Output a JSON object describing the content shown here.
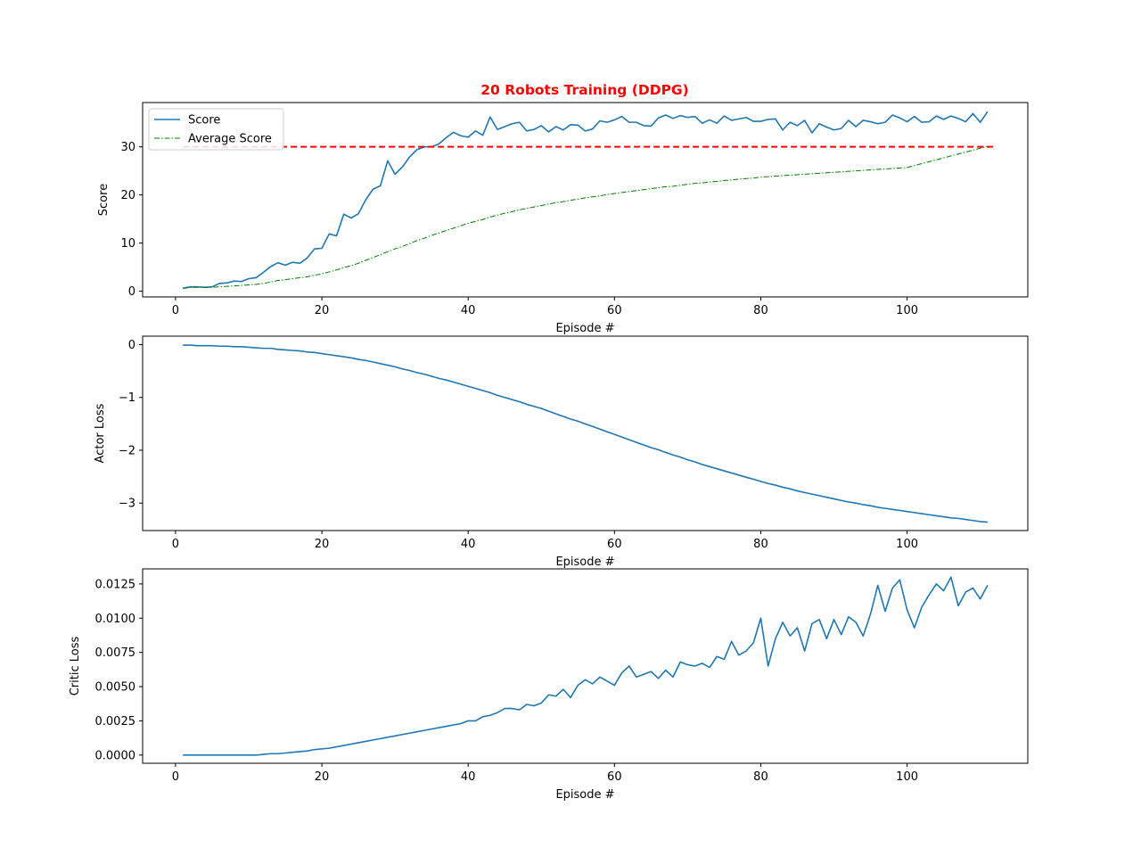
{
  "title": "20 Robots Training (DDPG)",
  "colors": {
    "score": "#1f77b4",
    "average": "#008000",
    "target": "#ff0000",
    "title": "#ff0000"
  },
  "chart_data": [
    {
      "type": "line",
      "xlabel": "Episode #",
      "ylabel": "Score",
      "xlim": [
        -4.5,
        116.5
      ],
      "ylim": [
        -1.2,
        39.2
      ],
      "xticks": [
        "0",
        "20",
        "40",
        "60",
        "80",
        "100"
      ],
      "yticks": [
        "0",
        "10",
        "20",
        "30"
      ],
      "legend": {
        "position": "top-left",
        "entries": [
          "Score",
          "Average Score"
        ]
      },
      "target_line": {
        "y": 30,
        "x": [
          1,
          112
        ],
        "style": "dashed"
      },
      "x_start": 1,
      "series": [
        {
          "name": "Score",
          "style": "solid",
          "values": [
            0.6,
            0.9,
            0.9,
            0.8,
            0.9,
            1.6,
            1.7,
            2.1,
            2.0,
            2.6,
            2.8,
            3.9,
            5.1,
            5.9,
            5.4,
            6.0,
            5.8,
            6.9,
            8.8,
            8.9,
            11.9,
            11.5,
            16.0,
            15.2,
            16.1,
            19.0,
            21.2,
            21.9,
            27.1,
            24.3,
            25.8,
            27.9,
            29.4,
            30.0,
            30.0,
            30.6,
            31.9,
            33.0,
            32.3,
            32.0,
            33.3,
            32.4,
            36.2,
            33.6,
            34.2,
            34.8,
            35.1,
            33.3,
            33.6,
            34.4,
            33.1,
            34.2,
            33.5,
            34.6,
            34.5,
            33.3,
            33.7,
            35.4,
            35.1,
            35.6,
            36.3,
            35.1,
            35.1,
            34.4,
            34.3,
            36.0,
            36.6,
            35.9,
            36.5,
            36.1,
            36.3,
            34.9,
            35.6,
            34.9,
            36.4,
            35.5,
            35.8,
            36.1,
            35.3,
            35.3,
            35.7,
            35.8,
            33.5,
            35.1,
            34.4,
            35.5,
            32.9,
            34.8,
            34.1,
            33.5,
            33.8,
            35.5,
            34.2,
            35.5,
            35.2,
            34.8,
            35.1,
            36.6,
            36.0,
            35.2,
            36.3,
            35.1,
            35.2,
            36.4,
            35.7,
            36.4,
            35.9,
            35.2,
            36.9,
            35.1,
            37.3
          ]
        },
        {
          "name": "Average Score",
          "style": "dashdot",
          "values": [
            0.6,
            0.75,
            0.8,
            0.8,
            0.8,
            0.9,
            1.0,
            1.1,
            1.2,
            1.3,
            1.4,
            1.6,
            1.9,
            2.2,
            2.4,
            2.6,
            2.8,
            3.0,
            3.3,
            3.6,
            4.0,
            4.4,
            4.9,
            5.3,
            5.8,
            6.4,
            7.0,
            7.6,
            8.2,
            8.8,
            9.3,
            9.9,
            10.5,
            11.0,
            11.6,
            12.1,
            12.6,
            13.1,
            13.6,
            14.1,
            14.5,
            14.9,
            15.4,
            15.8,
            16.2,
            16.5,
            16.9,
            17.2,
            17.5,
            17.8,
            18.1,
            18.4,
            18.6,
            18.9,
            19.1,
            19.4,
            19.6,
            19.8,
            20.1,
            20.3,
            20.5,
            20.7,
            20.9,
            21.1,
            21.3,
            21.5,
            21.7,
            21.8,
            22.0,
            22.2,
            22.4,
            22.5,
            22.7,
            22.8,
            23.0,
            23.1,
            23.3,
            23.4,
            23.5,
            23.7,
            23.8,
            23.9,
            24.0,
            24.1,
            24.2,
            24.3,
            24.4,
            24.5,
            24.6,
            24.7,
            24.8,
            24.9,
            25.0,
            25.1,
            25.2,
            25.3,
            25.4,
            25.5,
            25.6,
            25.7,
            26.1,
            26.5,
            26.9,
            27.3,
            27.7,
            28.1,
            28.5,
            28.9,
            29.3,
            29.7,
            30.1
          ]
        }
      ]
    },
    {
      "type": "line",
      "xlabel": "Episode #",
      "ylabel": "Actor Loss",
      "xlim": [
        -4.5,
        116.5
      ],
      "ylim": [
        -3.52,
        0.16
      ],
      "xticks": [
        "0",
        "20",
        "40",
        "60",
        "80",
        "100"
      ],
      "yticks": [
        "0",
        "−1",
        "−2",
        "−3"
      ],
      "x_start": 1,
      "series": [
        {
          "style": "solid",
          "values": [
            -0.01,
            -0.01,
            -0.02,
            -0.02,
            -0.02,
            -0.03,
            -0.03,
            -0.04,
            -0.04,
            -0.05,
            -0.06,
            -0.07,
            -0.07,
            -0.09,
            -0.1,
            -0.11,
            -0.12,
            -0.14,
            -0.15,
            -0.17,
            -0.19,
            -0.21,
            -0.23,
            -0.25,
            -0.28,
            -0.3,
            -0.33,
            -0.36,
            -0.39,
            -0.42,
            -0.46,
            -0.49,
            -0.53,
            -0.56,
            -0.6,
            -0.64,
            -0.67,
            -0.71,
            -0.75,
            -0.79,
            -0.83,
            -0.87,
            -0.91,
            -0.96,
            -1.0,
            -1.04,
            -1.08,
            -1.13,
            -1.17,
            -1.21,
            -1.26,
            -1.31,
            -1.36,
            -1.41,
            -1.45,
            -1.5,
            -1.55,
            -1.6,
            -1.65,
            -1.7,
            -1.75,
            -1.8,
            -1.85,
            -1.9,
            -1.95,
            -1.99,
            -2.04,
            -2.09,
            -2.13,
            -2.18,
            -2.22,
            -2.27,
            -2.31,
            -2.35,
            -2.39,
            -2.43,
            -2.47,
            -2.51,
            -2.55,
            -2.59,
            -2.63,
            -2.66,
            -2.7,
            -2.73,
            -2.77,
            -2.8,
            -2.83,
            -2.86,
            -2.89,
            -2.92,
            -2.95,
            -2.98,
            -3.0,
            -3.03,
            -3.05,
            -3.08,
            -3.1,
            -3.12,
            -3.14,
            -3.16,
            -3.18,
            -3.2,
            -3.22,
            -3.24,
            -3.26,
            -3.28,
            -3.29,
            -3.31,
            -3.33,
            -3.35,
            -3.36
          ]
        }
      ]
    },
    {
      "type": "line",
      "xlabel": "Episode #",
      "ylabel": "Critic Loss",
      "xlim": [
        -4.5,
        116.5
      ],
      "ylim": [
        -0.0006,
        0.0136
      ],
      "xticks": [
        "0",
        "20",
        "40",
        "60",
        "80",
        "100"
      ],
      "yticks": [
        "0.0000",
        "0.0025",
        "0.0050",
        "0.0075",
        "0.0100",
        "0.0125"
      ],
      "x_start": 1,
      "series": [
        {
          "style": "solid",
          "values": [
            0.0,
            0.0,
            0.0,
            0.0,
            0.0,
            0.0,
            0.0,
            0.0,
            0.0,
            0.0,
            0.0,
            5e-05,
            0.0001,
            0.0001,
            0.00015,
            0.0002,
            0.00025,
            0.0003,
            0.0004,
            0.00045,
            0.0005,
            0.0006,
            0.0007,
            0.0008,
            0.0009,
            0.001,
            0.0011,
            0.0012,
            0.0013,
            0.0014,
            0.0015,
            0.0016,
            0.0017,
            0.0018,
            0.0019,
            0.002,
            0.0021,
            0.0022,
            0.0023,
            0.0025,
            0.0025,
            0.0028,
            0.0029,
            0.0031,
            0.0034,
            0.0034,
            0.0033,
            0.0037,
            0.0036,
            0.0038,
            0.0044,
            0.0043,
            0.0048,
            0.0042,
            0.0051,
            0.0055,
            0.0052,
            0.0057,
            0.0054,
            0.0051,
            0.006,
            0.0065,
            0.0057,
            0.0059,
            0.0061,
            0.0056,
            0.0062,
            0.0057,
            0.0068,
            0.0066,
            0.0065,
            0.0067,
            0.0064,
            0.0072,
            0.007,
            0.0083,
            0.0073,
            0.0076,
            0.0082,
            0.01,
            0.0065,
            0.0085,
            0.0097,
            0.0087,
            0.0093,
            0.0076,
            0.0096,
            0.0099,
            0.0085,
            0.0099,
            0.0088,
            0.0101,
            0.0097,
            0.0087,
            0.0103,
            0.0124,
            0.0105,
            0.0122,
            0.0128,
            0.0106,
            0.0093,
            0.0108,
            0.0117,
            0.0125,
            0.012,
            0.013,
            0.0109,
            0.0119,
            0.0122,
            0.0114,
            0.0124
          ]
        }
      ]
    }
  ]
}
